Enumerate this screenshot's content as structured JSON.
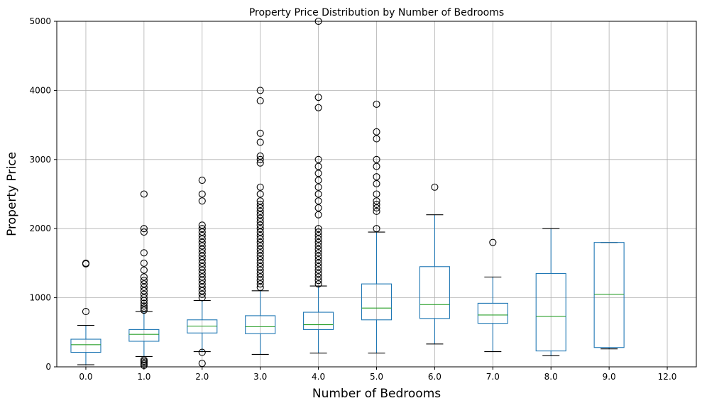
{
  "chart_data": {
    "type": "box",
    "title": "Property Price Distribution by Number of Bedrooms",
    "xlabel": "Number of Bedrooms",
    "ylabel": "Property Price",
    "categories": [
      "0.0",
      "1.0",
      "2.0",
      "3.0",
      "4.0",
      "5.0",
      "6.0",
      "7.0",
      "8.0",
      "9.0",
      "12.0"
    ],
    "ylim": [
      0,
      5000
    ],
    "yticks": [
      0,
      1000,
      2000,
      3000,
      4000,
      5000
    ],
    "grid": true,
    "boxes": [
      {
        "category": "0.0",
        "whislo": 30,
        "q1": 210,
        "med": 320,
        "q3": 400,
        "whishi": 600,
        "fliers": [
          800,
          1490,
          1500
        ]
      },
      {
        "category": "1.0",
        "whislo": 150,
        "q1": 370,
        "med": 470,
        "q3": 540,
        "whishi": 800,
        "fliers": [
          20,
          40,
          60,
          80,
          100,
          820,
          850,
          880,
          920,
          960,
          1000,
          1050,
          1100,
          1150,
          1200,
          1250,
          1300,
          1400,
          1500,
          1650,
          1950,
          2000,
          2500
        ]
      },
      {
        "category": "2.0",
        "whislo": 220,
        "q1": 490,
        "med": 590,
        "q3": 680,
        "whishi": 960,
        "fliers": [
          50,
          210,
          1000,
          1050,
          1100,
          1150,
          1200,
          1250,
          1300,
          1350,
          1400,
          1450,
          1500,
          1550,
          1600,
          1650,
          1700,
          1750,
          1800,
          1850,
          1900,
          1950,
          2000,
          2050,
          2400,
          2500,
          2700
        ]
      },
      {
        "category": "3.0",
        "whislo": 180,
        "q1": 480,
        "med": 580,
        "q3": 740,
        "whishi": 1100,
        "fliers": [
          1150,
          1200,
          1250,
          1300,
          1350,
          1400,
          1450,
          1500,
          1550,
          1600,
          1650,
          1700,
          1750,
          1800,
          1850,
          1900,
          1950,
          2000,
          2050,
          2100,
          2150,
          2200,
          2250,
          2300,
          2350,
          2400,
          2500,
          2600,
          2950,
          3000,
          3050,
          3250,
          3380,
          3850,
          4000
        ]
      },
      {
        "category": "4.0",
        "whislo": 200,
        "q1": 540,
        "med": 610,
        "q3": 790,
        "whishi": 1170,
        "fliers": [
          1200,
          1250,
          1300,
          1350,
          1400,
          1450,
          1500,
          1550,
          1600,
          1650,
          1700,
          1750,
          1800,
          1850,
          1900,
          1950,
          2000,
          2200,
          2300,
          2400,
          2500,
          2600,
          2700,
          2800,
          2900,
          3000,
          3750,
          3900,
          5000
        ]
      },
      {
        "category": "5.0",
        "whislo": 200,
        "q1": 680,
        "med": 850,
        "q3": 1200,
        "whishi": 1950,
        "fliers": [
          2000,
          2250,
          2300,
          2350,
          2400,
          2500,
          2650,
          2750,
          2900,
          3000,
          3300,
          3400,
          3800
        ]
      },
      {
        "category": "6.0",
        "whislo": 330,
        "q1": 700,
        "med": 900,
        "q3": 1450,
        "whishi": 2200,
        "fliers": [
          2600
        ]
      },
      {
        "category": "7.0",
        "whislo": 220,
        "q1": 630,
        "med": 750,
        "q3": 920,
        "whishi": 1300,
        "fliers": [
          1800
        ]
      },
      {
        "category": "8.0",
        "whislo": 160,
        "q1": 230,
        "med": 730,
        "q3": 1350,
        "whishi": 2000,
        "fliers": []
      },
      {
        "category": "9.0",
        "whislo": 260,
        "q1": 280,
        "med": 1050,
        "q3": 1800,
        "whishi": 1800,
        "fliers": []
      },
      {
        "category": "12.0",
        "empty": true
      }
    ]
  }
}
